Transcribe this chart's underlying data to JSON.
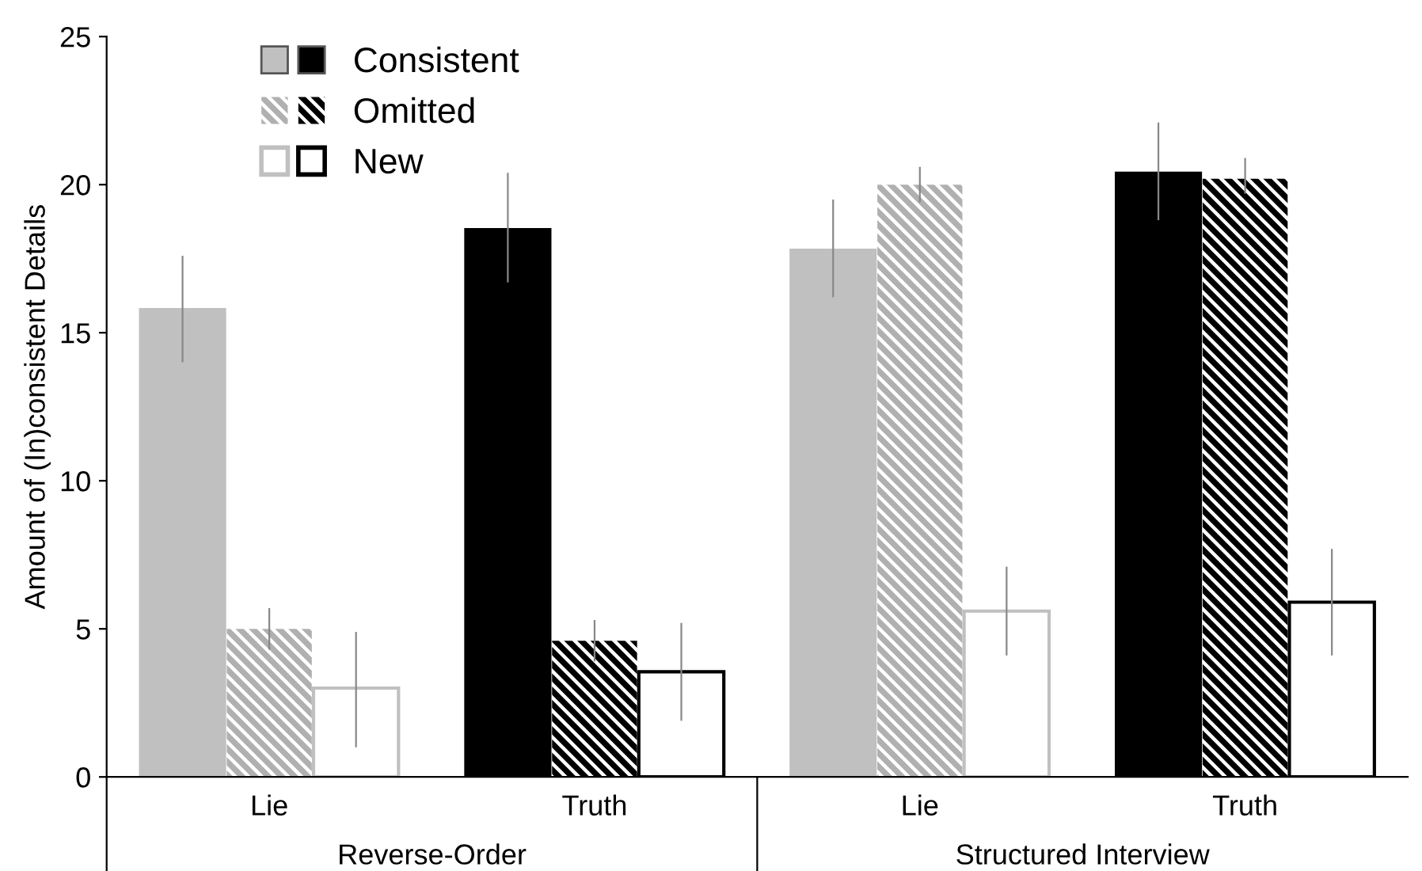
{
  "chart_data": {
    "type": "bar",
    "ylabel": "Amount of (In)consistent Details",
    "categories": [
      "Lie",
      "Truth",
      "Lie",
      "Truth"
    ],
    "series": [
      {
        "name": "Consistent",
        "colors": [
          "#c0c0c0",
          "#000000",
          "#c0c0c0",
          "#000000"
        ],
        "values": [
          15.8,
          18.5,
          17.8,
          20.4
        ],
        "errors": [
          [
            14.0,
            17.6
          ],
          [
            16.7,
            20.4
          ],
          [
            16.2,
            19.5
          ],
          [
            18.8,
            22.1
          ]
        ]
      },
      {
        "name": "Omitted",
        "colors": [
          "#b0b0b0",
          "#000000",
          "#b0b0b0",
          "#000000"
        ],
        "values": [
          5.0,
          4.6,
          20.0,
          20.2
        ],
        "errors": [
          [
            4.3,
            5.7
          ],
          [
            3.9,
            5.3
          ],
          [
            19.4,
            20.6
          ],
          [
            19.7,
            20.9
          ]
        ]
      },
      {
        "name": "New",
        "colors": [
          "#c0c0c0",
          "#000000",
          "#c0c0c0",
          "#000000"
        ],
        "values": [
          3.0,
          3.55,
          5.6,
          5.9
        ],
        "errors": [
          [
            1.0,
            4.9
          ],
          [
            1.9,
            5.2
          ],
          [
            4.1,
            7.1
          ],
          [
            4.1,
            7.7
          ]
        ]
      }
    ],
    "ylim": [
      0,
      25
    ],
    "yticks": [
      0,
      5,
      10,
      15,
      20,
      25
    ],
    "grid": false,
    "legend": "top left",
    "annotations": [
      "Reverse-Order",
      "Structured Interview"
    ]
  }
}
